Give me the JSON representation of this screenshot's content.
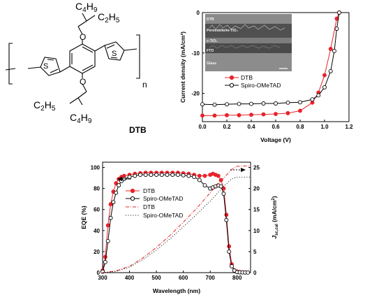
{
  "molecule": {
    "substituent_top": {
      "c": "C",
      "n1": "4",
      "h": "H",
      "n2": "9"
    },
    "substituent_top2": {
      "c": "C",
      "n1": "2",
      "h": "H",
      "n2": "5"
    },
    "substituent_bot": {
      "c": "C",
      "n1": "2",
      "h": "H",
      "n2": "5"
    },
    "substituent_bot2": {
      "c": "C",
      "n1": "4",
      "h": "H",
      "n2": "9"
    },
    "oxygen_label": "O",
    "sulfur_label": "S",
    "repeat_n": "n",
    "name": "DTB"
  },
  "chart_data": [
    {
      "type": "line",
      "id": "jv",
      "xlabel": "Voltage (V)",
      "ylabel": "Current density (mA/cm²)",
      "xlim": [
        0.0,
        1.2
      ],
      "ylim": [
        -27,
        0
      ],
      "xticks": [
        "0.0",
        "0.2",
        "0.4",
        "0.6",
        "0.8",
        "1.0",
        "1.2"
      ],
      "yticks": [
        "0",
        "-10",
        "-20"
      ],
      "legend_position": "middle-left",
      "series": [
        {
          "name": "DTB",
          "color": "#e8232b",
          "marker": "filled-circle",
          "x": [
            0.0,
            0.1,
            0.2,
            0.3,
            0.4,
            0.5,
            0.6,
            0.7,
            0.8,
            0.9,
            0.95,
            1.0,
            1.05,
            1.1,
            1.12
          ],
          "y": [
            -25.5,
            -25.5,
            -25.4,
            -25.4,
            -25.3,
            -25.2,
            -25.1,
            -24.9,
            -24.3,
            -22.3,
            -19.8,
            -15.5,
            -9,
            -1.5,
            0
          ]
        },
        {
          "name": "Spiro-OMeTAD",
          "color": "#000000",
          "marker": "open-circle",
          "x": [
            0.0,
            0.1,
            0.2,
            0.3,
            0.4,
            0.5,
            0.6,
            0.7,
            0.8,
            0.9,
            0.95,
            1.0,
            1.05,
            1.08,
            1.1,
            1.12
          ],
          "y": [
            -22.7,
            -22.8,
            -22.7,
            -22.6,
            -22.6,
            -22.5,
            -22.5,
            -22.3,
            -22.2,
            -21.5,
            -20.5,
            -18.5,
            -14.5,
            -9.5,
            -4,
            0
          ]
        }
      ],
      "inset": {
        "labels": [
          "DTB",
          "Perovskite/m-TiO₂",
          "c-TiO₂",
          "FTO",
          "Glass"
        ]
      }
    },
    {
      "type": "line",
      "id": "eqe",
      "xlabel": "Wavelength (nm)",
      "ylabel_left": "EQE (%)",
      "ylabel_right": "J_sc,cal (mA/cm²)",
      "xlim": [
        300,
        850
      ],
      "ylim_left": [
        0,
        105
      ],
      "ylim_right": [
        0,
        26.25
      ],
      "xticks": [
        "300",
        "400",
        "500",
        "600",
        "700",
        "800"
      ],
      "yticks_left": [
        "0",
        "20",
        "40",
        "60",
        "80",
        "100"
      ],
      "yticks_right": [
        "0",
        "5",
        "10",
        "15",
        "20",
        "25"
      ],
      "legend_position": "center-left",
      "series": [
        {
          "name": "DTB",
          "axis": "left",
          "color": "#e8232b",
          "marker": "filled-circle",
          "x": [
            300,
            310,
            320,
            330,
            340,
            350,
            360,
            370,
            380,
            400,
            420,
            440,
            460,
            480,
            500,
            520,
            540,
            560,
            580,
            600,
            620,
            640,
            660,
            680,
            700,
            710,
            720,
            730,
            740,
            750,
            760,
            770,
            780,
            790,
            800,
            810,
            820,
            830,
            840
          ],
          "y": [
            2,
            15,
            45,
            65,
            77,
            85,
            89,
            91,
            92,
            93,
            94,
            94.5,
            95,
            95,
            95,
            95,
            95,
            95,
            95,
            94.5,
            94,
            93,
            92,
            92,
            93,
            94,
            93,
            92,
            88,
            80,
            55,
            25,
            8,
            2,
            1,
            0.5,
            0.3,
            0.2,
            0.2
          ]
        },
        {
          "name": "Spiro-OMeTAD",
          "axis": "left",
          "color": "#000000",
          "marker": "open-circle",
          "x": [
            300,
            310,
            320,
            330,
            340,
            350,
            360,
            370,
            380,
            400,
            420,
            440,
            460,
            480,
            500,
            520,
            540,
            560,
            580,
            600,
            620,
            640,
            660,
            680,
            700,
            710,
            720,
            730,
            740,
            750,
            760,
            770,
            780,
            790,
            800,
            810,
            820,
            830,
            840
          ],
          "y": [
            1,
            10,
            30,
            52,
            67,
            76,
            83,
            87,
            89,
            91,
            92,
            93,
            93,
            93,
            93,
            93,
            93,
            93,
            93,
            92.5,
            92,
            91,
            88,
            83,
            80,
            81,
            82,
            83,
            82,
            75,
            50,
            20,
            6,
            2,
            0.5,
            0.3,
            0.2,
            0.1,
            0.1
          ]
        },
        {
          "name": "DTB",
          "axis": "right",
          "color": "#e8232b",
          "style": "dash-dot",
          "x": [
            300,
            350,
            400,
            450,
            500,
            550,
            600,
            650,
            700,
            750,
            780,
            800,
            850
          ],
          "y": [
            0,
            0.4,
            1.5,
            3.5,
            6,
            8.8,
            12,
            15.3,
            19,
            22.5,
            24.5,
            25.3,
            25.4
          ]
        },
        {
          "name": "Spiro-OMeTAD",
          "axis": "right",
          "color": "#000000",
          "style": "dotted",
          "x": [
            300,
            350,
            400,
            450,
            500,
            550,
            600,
            650,
            700,
            750,
            780,
            800,
            850
          ],
          "y": [
            0,
            0.3,
            1.3,
            3.1,
            5.4,
            8,
            10.9,
            13.9,
            17,
            20.5,
            22.3,
            22.7,
            22.7
          ]
        }
      ]
    }
  ]
}
